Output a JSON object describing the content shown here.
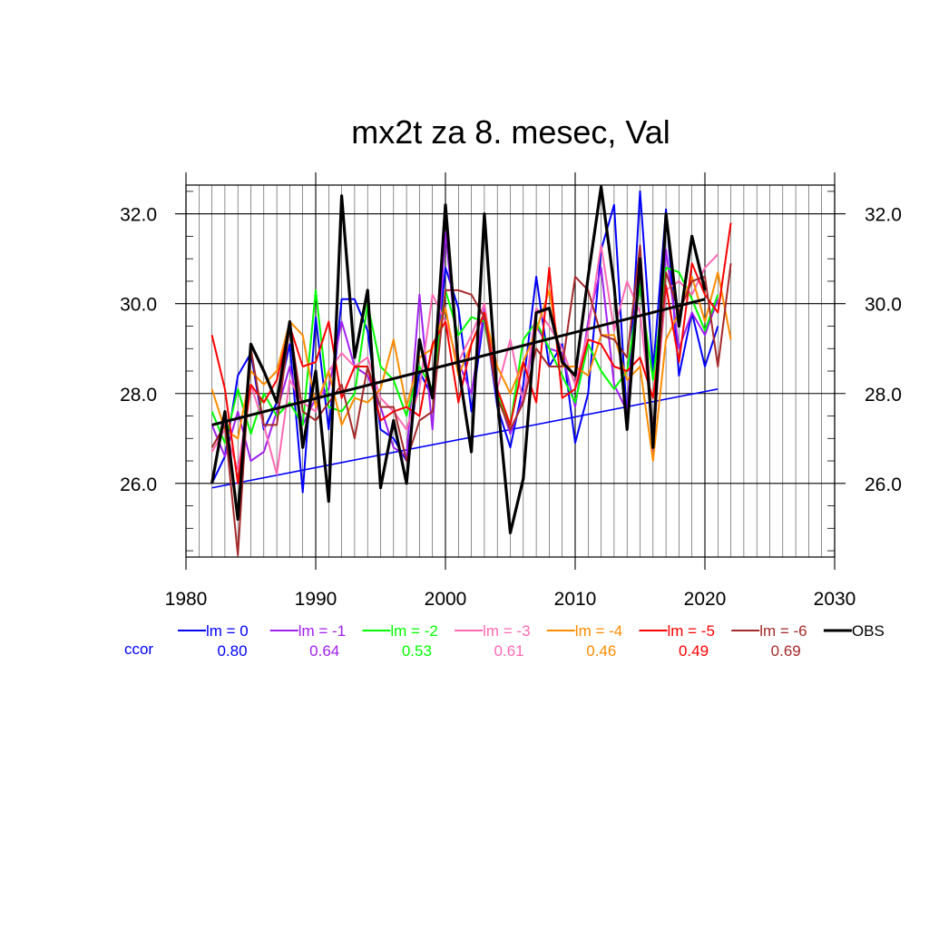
{
  "chart_data": {
    "type": "line",
    "title": "mx2t za 8. mesec, Val",
    "xlabel": "",
    "ylabel": "",
    "xlim": [
      1980,
      2030
    ],
    "ylim": [
      24.36,
      32.64
    ],
    "x_ticks": [
      "1980",
      "1990",
      "2000",
      "2010",
      "2020",
      "2030"
    ],
    "y_ticks": [
      "26.0",
      "28.0",
      "30.0",
      "32.0"
    ],
    "grid": true,
    "legend_position": "bottom",
    "correlation_label": "ccor",
    "series": [
      {
        "name": "lm = 0",
        "color": "#0000ff",
        "corr": "0.80",
        "x": [
          1982,
          1983,
          1984,
          1985,
          1986,
          1987,
          1988,
          1989,
          1990,
          1991,
          1992,
          1993,
          1994,
          1995,
          1996,
          1997,
          1998,
          1999,
          2000,
          2001,
          2002,
          2003,
          2004,
          2005,
          2006,
          2007,
          2008,
          2009,
          2010,
          2011,
          2012,
          2013,
          2014,
          2015,
          2016,
          2017,
          2018,
          2019,
          2020,
          2021
        ],
        "values": [
          26.0,
          26.6,
          28.4,
          28.9,
          27.2,
          27.8,
          29.1,
          25.8,
          29.7,
          27.2,
          30.1,
          30.1,
          29.4,
          27.2,
          27.0,
          26.5,
          28.5,
          27.9,
          30.8,
          29.9,
          27.6,
          29.8,
          27.7,
          26.8,
          28.2,
          30.6,
          28.6,
          29.1,
          26.9,
          28.0,
          31.2,
          32.2,
          27.4,
          32.5,
          28.5,
          32.1,
          28.4,
          29.8,
          28.6,
          29.5
        ],
        "trend": [
          [
            1982,
            25.9
          ],
          [
            2021,
            28.1
          ]
        ]
      },
      {
        "name": "lm = -1",
        "color": "#a020f0",
        "corr": "0.64",
        "x": [
          1982,
          1983,
          1984,
          1985,
          1986,
          1987,
          1988,
          1989,
          1990,
          1991,
          1992,
          1993,
          1994,
          1995,
          1996,
          1997,
          1998,
          1999,
          2000,
          2001,
          2002,
          2003,
          2004,
          2005,
          2006,
          2007,
          2008,
          2009,
          2010,
          2011,
          2012,
          2013,
          2014,
          2015,
          2016,
          2017,
          2018,
          2019,
          2020,
          2021
        ],
        "values": [
          27.3,
          26.6,
          27.6,
          26.5,
          26.7,
          27.6,
          28.6,
          27.3,
          27.9,
          28.1,
          29.6,
          28.6,
          28.4,
          27.7,
          26.8,
          26.6,
          30.2,
          27.2,
          31.6,
          28.7,
          28.0,
          29.9,
          28.0,
          27.1,
          27.9,
          29.5,
          29.0,
          28.9,
          27.7,
          29.6,
          30.8,
          28.2,
          27.6,
          31.2,
          26.7,
          31.2,
          29.0,
          29.8,
          29.3,
          30.1
        ]
      },
      {
        "name": "lm = -2",
        "color": "#00ff00",
        "corr": "0.53",
        "x": [
          1982,
          1983,
          1984,
          1985,
          1986,
          1987,
          1988,
          1989,
          1990,
          1991,
          1992,
          1993,
          1994,
          1995,
          1996,
          1997,
          1998,
          1999,
          2000,
          2001,
          2002,
          2003,
          2004,
          2005,
          2006,
          2007,
          2008,
          2009,
          2010,
          2011,
          2012,
          2013,
          2014,
          2015,
          2016,
          2017,
          2018,
          2019,
          2020,
          2021
        ],
        "values": [
          27.6,
          26.9,
          28.1,
          27.1,
          28.0,
          27.5,
          27.8,
          27.3,
          30.3,
          27.7,
          27.6,
          28.0,
          30.0,
          28.6,
          28.3,
          27.5,
          28.6,
          28.1,
          30.3,
          29.3,
          29.7,
          29.6,
          28.0,
          27.3,
          29.2,
          29.6,
          29.0,
          28.4,
          27.8,
          29.1,
          28.5,
          28.1,
          28.5,
          30.4,
          28.3,
          30.8,
          30.7,
          30.1,
          29.4,
          30.2
        ]
      },
      {
        "name": "lm = -3",
        "color": "#ff69b4",
        "corr": "0.61",
        "x": [
          1982,
          1983,
          1984,
          1985,
          1986,
          1987,
          1988,
          1989,
          1990,
          1991,
          1992,
          1993,
          1994,
          1995,
          1996,
          1997,
          1998,
          1999,
          2000,
          2001,
          2002,
          2003,
          2004,
          2005,
          2006,
          2007,
          2008,
          2009,
          2010,
          2011,
          2012,
          2013,
          2014,
          2015,
          2016,
          2017,
          2018,
          2019,
          2020,
          2021
        ],
        "values": [
          26.7,
          27.2,
          26.3,
          28.2,
          27.3,
          26.2,
          28.3,
          27.8,
          27.6,
          28.5,
          28.9,
          28.6,
          28.8,
          27.9,
          27.6,
          27.2,
          28.1,
          30.2,
          29.6,
          28.7,
          29.3,
          30.0,
          28.1,
          29.2,
          27.8,
          29.9,
          29.5,
          29.0,
          28.2,
          29.4,
          31.3,
          29.4,
          30.5,
          29.8,
          27.2,
          30.3,
          30.5,
          30.2,
          30.8,
          31.1
        ]
      },
      {
        "name": "lm = -4",
        "color": "#ff8c00",
        "corr": "0.46",
        "x": [
          1982,
          1983,
          1984,
          1985,
          1986,
          1987,
          1988,
          1989,
          1990,
          1991,
          1992,
          1993,
          1994,
          1995,
          1996,
          1997,
          1998,
          1999,
          2000,
          2001,
          2002,
          2003,
          2004,
          2005,
          2006,
          2007,
          2008,
          2009,
          2010,
          2011,
          2012,
          2013,
          2014,
          2015,
          2016,
          2017,
          2018,
          2019,
          2020,
          2021,
          2022
        ],
        "values": [
          28.1,
          27.2,
          27.0,
          28.5,
          28.2,
          28.5,
          29.6,
          29.3,
          27.7,
          28.5,
          27.3,
          27.9,
          27.8,
          28.1,
          29.2,
          27.7,
          28.8,
          29.0,
          29.9,
          28.4,
          29.1,
          29.8,
          28.6,
          28.0,
          28.7,
          29.4,
          30.3,
          28.6,
          28.6,
          28.4,
          29.3,
          29.3,
          28.3,
          28.6,
          26.5,
          29.2,
          29.8,
          30.6,
          29.6,
          30.7,
          29.2
        ]
      },
      {
        "name": "lm = -5",
        "color": "#ff0000",
        "corr": "0.49",
        "x": [
          1982,
          1983,
          1984,
          1985,
          1986,
          1987,
          1988,
          1989,
          1990,
          1991,
          1992,
          1993,
          1994,
          1995,
          1996,
          1997,
          1998,
          1999,
          2000,
          2001,
          2002,
          2003,
          2004,
          2005,
          2006,
          2007,
          2008,
          2009,
          2010,
          2011,
          2012,
          2013,
          2014,
          2015,
          2016,
          2017,
          2018,
          2019,
          2020,
          2021,
          2022
        ],
        "values": [
          29.3,
          28.1,
          26.0,
          28.2,
          27.8,
          28.3,
          29.5,
          28.6,
          28.7,
          29.6,
          27.9,
          28.6,
          28.6,
          27.4,
          27.6,
          27.7,
          27.5,
          29.1,
          29.6,
          27.8,
          29.1,
          29.8,
          28.1,
          27.3,
          28.7,
          27.8,
          30.8,
          27.9,
          28.1,
          29.2,
          29.1,
          28.6,
          28.5,
          28.8,
          27.9,
          30.4,
          28.7,
          30.9,
          30.2,
          29.8,
          31.8
        ]
      },
      {
        "name": "lm = -6",
        "color": "#a52a2a",
        "corr": "0.69",
        "x": [
          1982,
          1983,
          1984,
          1985,
          1986,
          1987,
          1988,
          1989,
          1990,
          1991,
          1992,
          1993,
          1994,
          1995,
          1996,
          1997,
          1998,
          1999,
          2000,
          2001,
          2002,
          2003,
          2004,
          2005,
          2006,
          2007,
          2008,
          2009,
          2010,
          2011,
          2012,
          2013,
          2014,
          2015,
          2016,
          2017,
          2018,
          2019,
          2020,
          2021,
          2022
        ],
        "values": [
          26.8,
          27.3,
          24.4,
          29.0,
          27.3,
          27.3,
          29.5,
          27.6,
          27.4,
          27.8,
          28.2,
          27.0,
          28.6,
          27.7,
          27.7,
          26.5,
          27.4,
          27.6,
          30.3,
          30.3,
          30.2,
          29.7,
          27.9,
          27.2,
          27.8,
          29.0,
          28.6,
          28.6,
          30.6,
          30.3,
          29.3,
          29.2,
          28.8,
          31.3,
          27.0,
          30.7,
          29.8,
          30.5,
          30.6,
          28.6,
          30.9
        ]
      },
      {
        "name": "OBS",
        "color": "#000000",
        "corr": "",
        "x": [
          1982,
          1983,
          1984,
          1985,
          1986,
          1987,
          1988,
          1989,
          1990,
          1991,
          1992,
          1993,
          1994,
          1995,
          1996,
          1997,
          1998,
          1999,
          2000,
          2001,
          2002,
          2003,
          2004,
          2005,
          2006,
          2007,
          2008,
          2009,
          2010,
          2011,
          2012,
          2013,
          2014,
          2015,
          2016,
          2017,
          2018,
          2019,
          2020
        ],
        "values": [
          26.0,
          27.6,
          25.2,
          29.1,
          28.5,
          27.8,
          29.6,
          26.8,
          28.5,
          25.6,
          32.4,
          28.8,
          30.3,
          25.9,
          27.4,
          26.0,
          29.2,
          27.9,
          32.2,
          28.6,
          26.7,
          32.0,
          27.9,
          24.9,
          26.1,
          29.8,
          29.9,
          28.7,
          28.4,
          30.6,
          32.6,
          30.4,
          27.2,
          31.0,
          26.8,
          32.0,
          29.5,
          31.5,
          30.3
        ],
        "trend": [
          [
            1982,
            27.3
          ],
          [
            2020,
            30.1
          ]
        ]
      }
    ]
  }
}
